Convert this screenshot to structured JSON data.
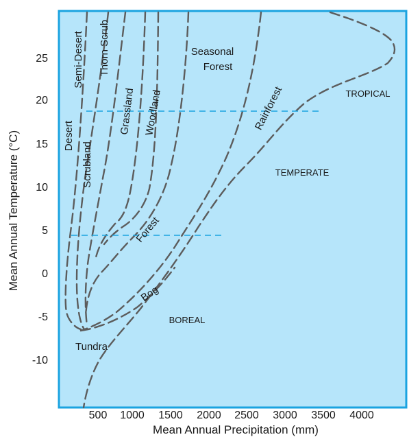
{
  "x_axis": {
    "title": "Mean Annual Precipitation (mm)",
    "ticks": [
      "500",
      "1000",
      "1500",
      "2000",
      "2500",
      "3000",
      "3500",
      "4000"
    ]
  },
  "y_axis": {
    "title": "Mean Annual Temperature (°C)",
    "ticks": [
      "25",
      "20",
      "15",
      "10",
      "5",
      "0",
      "-5",
      "-10"
    ]
  },
  "biomes": {
    "desert": "Desert",
    "semi_desert": "Semi-Desert",
    "thorn_scrub": "Thorn Scrub",
    "scrubland": "Scrubland",
    "grassland": "Grassland",
    "woodland": "Woodland",
    "seasonal_forest_1": "Seasonal",
    "seasonal_forest_2": "Forest",
    "rainforest": "Rainforest",
    "forest": "Forest",
    "bog": "Bog",
    "tundra": "Tundra"
  },
  "zones": {
    "tropical": "TROPICAL",
    "temperate": "TEMPERATE",
    "boreal": "BOREAL"
  },
  "colors": {
    "plot_background": "#b6e5fa",
    "frame": "#1aa3e0",
    "boundary_lines": "#5c5c5c",
    "zone_lines": "#1aa3e0"
  }
}
